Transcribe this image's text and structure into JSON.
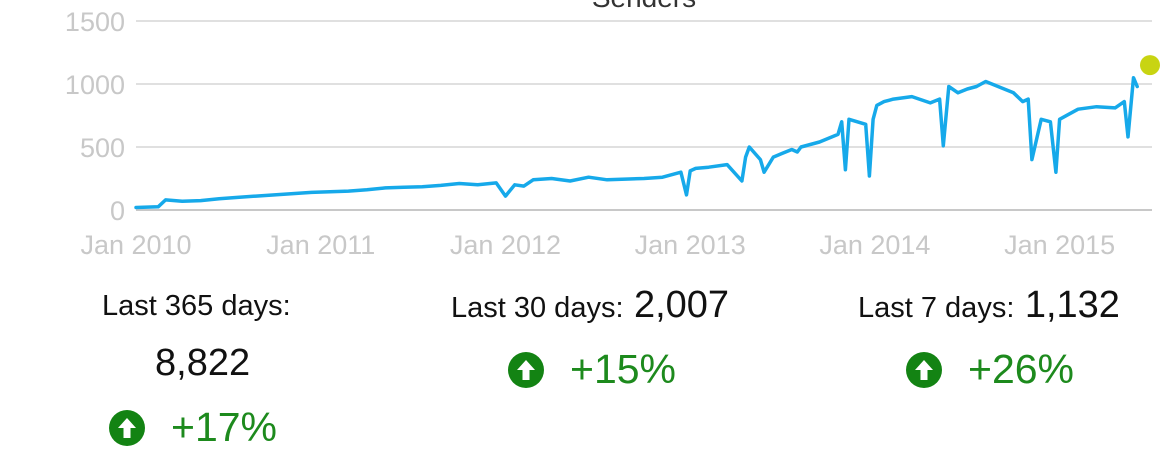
{
  "chart_data": {
    "type": "line",
    "title": "Senders",
    "xlabel": "",
    "ylabel": "",
    "ylim": [
      0,
      1500
    ],
    "xlim": [
      2010.0,
      2015.5
    ],
    "yticks": [
      0,
      500,
      1000,
      1500
    ],
    "xticks": [
      {
        "value": 2010,
        "label": "Jan 2010"
      },
      {
        "value": 2011,
        "label": "Jan 2011"
      },
      {
        "value": 2012,
        "label": "Jan 2012"
      },
      {
        "value": 2013,
        "label": "Jan 2013"
      },
      {
        "value": 2014,
        "label": "Jan 2014"
      },
      {
        "value": 2015,
        "label": "Jan 2015"
      }
    ],
    "grid": true,
    "series": [
      {
        "name": "Senders",
        "color": "#16a9ea",
        "x": [
          2010.0,
          2010.12,
          2010.16,
          2010.25,
          2010.35,
          2010.45,
          2010.55,
          2010.65,
          2010.75,
          2010.85,
          2010.95,
          2011.05,
          2011.15,
          2011.25,
          2011.35,
          2011.45,
          2011.55,
          2011.65,
          2011.75,
          2011.85,
          2011.95,
          2012.0,
          2012.05,
          2012.1,
          2012.15,
          2012.25,
          2012.35,
          2012.45,
          2012.55,
          2012.65,
          2012.75,
          2012.85,
          2012.95,
          2012.98,
          2013.0,
          2013.03,
          2013.1,
          2013.2,
          2013.28,
          2013.3,
          2013.32,
          2013.38,
          2013.4,
          2013.45,
          2013.5,
          2013.55,
          2013.58,
          2013.6,
          2013.7,
          2013.8,
          2013.82,
          2013.84,
          2013.86,
          2013.95,
          2013.97,
          2013.99,
          2014.01,
          2014.05,
          2014.1,
          2014.2,
          2014.3,
          2014.35,
          2014.37,
          2014.4,
          2014.45,
          2014.5,
          2014.55,
          2014.6,
          2014.7,
          2014.75,
          2014.8,
          2014.83,
          2014.85,
          2014.9,
          2014.95,
          2014.98,
          2015.0,
          2015.05,
          2015.1,
          2015.2,
          2015.3,
          2015.35,
          2015.37,
          2015.4,
          2015.42
        ],
        "values": [
          20,
          25,
          80,
          70,
          75,
          90,
          100,
          110,
          120,
          130,
          140,
          145,
          150,
          160,
          175,
          180,
          185,
          195,
          210,
          200,
          215,
          110,
          200,
          190,
          240,
          250,
          230,
          260,
          240,
          245,
          250,
          260,
          300,
          120,
          310,
          330,
          340,
          360,
          230,
          420,
          500,
          400,
          300,
          420,
          450,
          480,
          460,
          500,
          540,
          600,
          700,
          320,
          720,
          680,
          270,
          720,
          830,
          860,
          880,
          900,
          850,
          880,
          510,
          980,
          930,
          960,
          980,
          1020,
          960,
          930,
          860,
          880,
          400,
          720,
          700,
          300,
          720,
          760,
          800,
          820,
          810,
          860,
          580,
          1050,
          980
        ]
      }
    ],
    "markers": [
      {
        "x": 2015.5,
        "value": 1150,
        "color": "#c8d412"
      }
    ]
  },
  "stats": {
    "year": {
      "label": "Last 365 days:",
      "value": "8,822",
      "change": "+17%"
    },
    "month": {
      "label": "Last 30 days:",
      "value": "2,007",
      "change": "+15%"
    },
    "week": {
      "label": "Last 7 days:",
      "value": "1,132",
      "change": "+26%"
    }
  },
  "colors": {
    "up": "#138313",
    "up_text": "#1d8a1d",
    "grid": "#e0e0e0",
    "axis": "#c8c8c8"
  },
  "icons": {
    "up": "arrow-up-circle-icon"
  }
}
